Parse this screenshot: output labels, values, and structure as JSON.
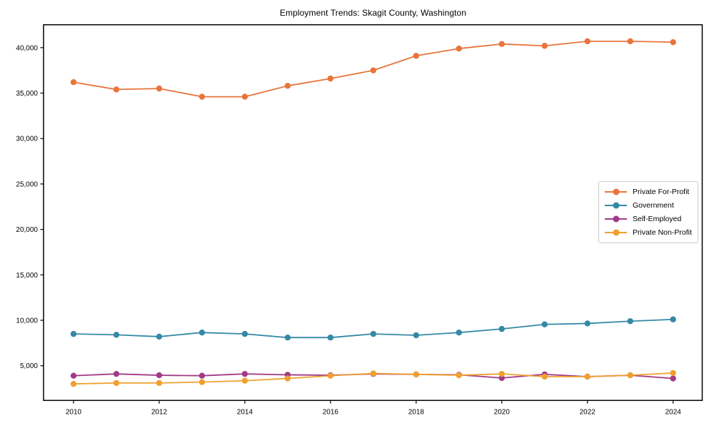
{
  "chart_data": {
    "type": "line",
    "title": "Employment Trends: Skagit County, Washington",
    "xlabel": "",
    "ylabel": "",
    "x": [
      2010,
      2011,
      2012,
      2013,
      2014,
      2015,
      2016,
      2017,
      2018,
      2019,
      2020,
      2021,
      2022,
      2023,
      2024
    ],
    "series": [
      {
        "name": "Private For-Profit",
        "color": "#E8743B",
        "values": [
          36200,
          35400,
          35500,
          34600,
          34600,
          35800,
          36600,
          37500,
          39100,
          39900,
          40400,
          40200,
          40700,
          40700,
          40600
        ]
      },
      {
        "name": "Government",
        "color": "#3589A5",
        "values": [
          8500,
          8400,
          8200,
          8650,
          8500,
          8100,
          8100,
          8500,
          8350,
          8650,
          9050,
          9550,
          9650,
          9900,
          10100
        ]
      },
      {
        "name": "Self-Employed",
        "color": "#A23B87",
        "values": [
          3900,
          4100,
          3950,
          3900,
          4100,
          4000,
          3950,
          4100,
          4050,
          4000,
          3650,
          4050,
          3800,
          3950,
          3600
        ]
      },
      {
        "name": "Private Non-Profit",
        "color": "#F0A02F",
        "values": [
          3000,
          3100,
          3100,
          3200,
          3350,
          3600,
          3900,
          4150,
          4050,
          3950,
          4100,
          3800,
          3800,
          3950,
          4200
        ]
      }
    ],
    "xticks": [
      "2010",
      "2012",
      "2014",
      "2016",
      "2018",
      "2020",
      "2022",
      "2024"
    ],
    "xtick_values": [
      2010,
      2012,
      2014,
      2016,
      2018,
      2020,
      2022,
      2024
    ],
    "yticks": [
      "5,000",
      "10,000",
      "15,000",
      "20,000",
      "25,000",
      "30,000",
      "35,000",
      "40,000"
    ],
    "ytick_values": [
      5000,
      10000,
      15000,
      20000,
      25000,
      30000,
      35000,
      40000
    ],
    "xlim": [
      2009.3,
      2024.68
    ],
    "ylim": [
      1185,
      42520
    ],
    "grid": false,
    "legend_position": "center-right",
    "axis_color": "#000000"
  }
}
